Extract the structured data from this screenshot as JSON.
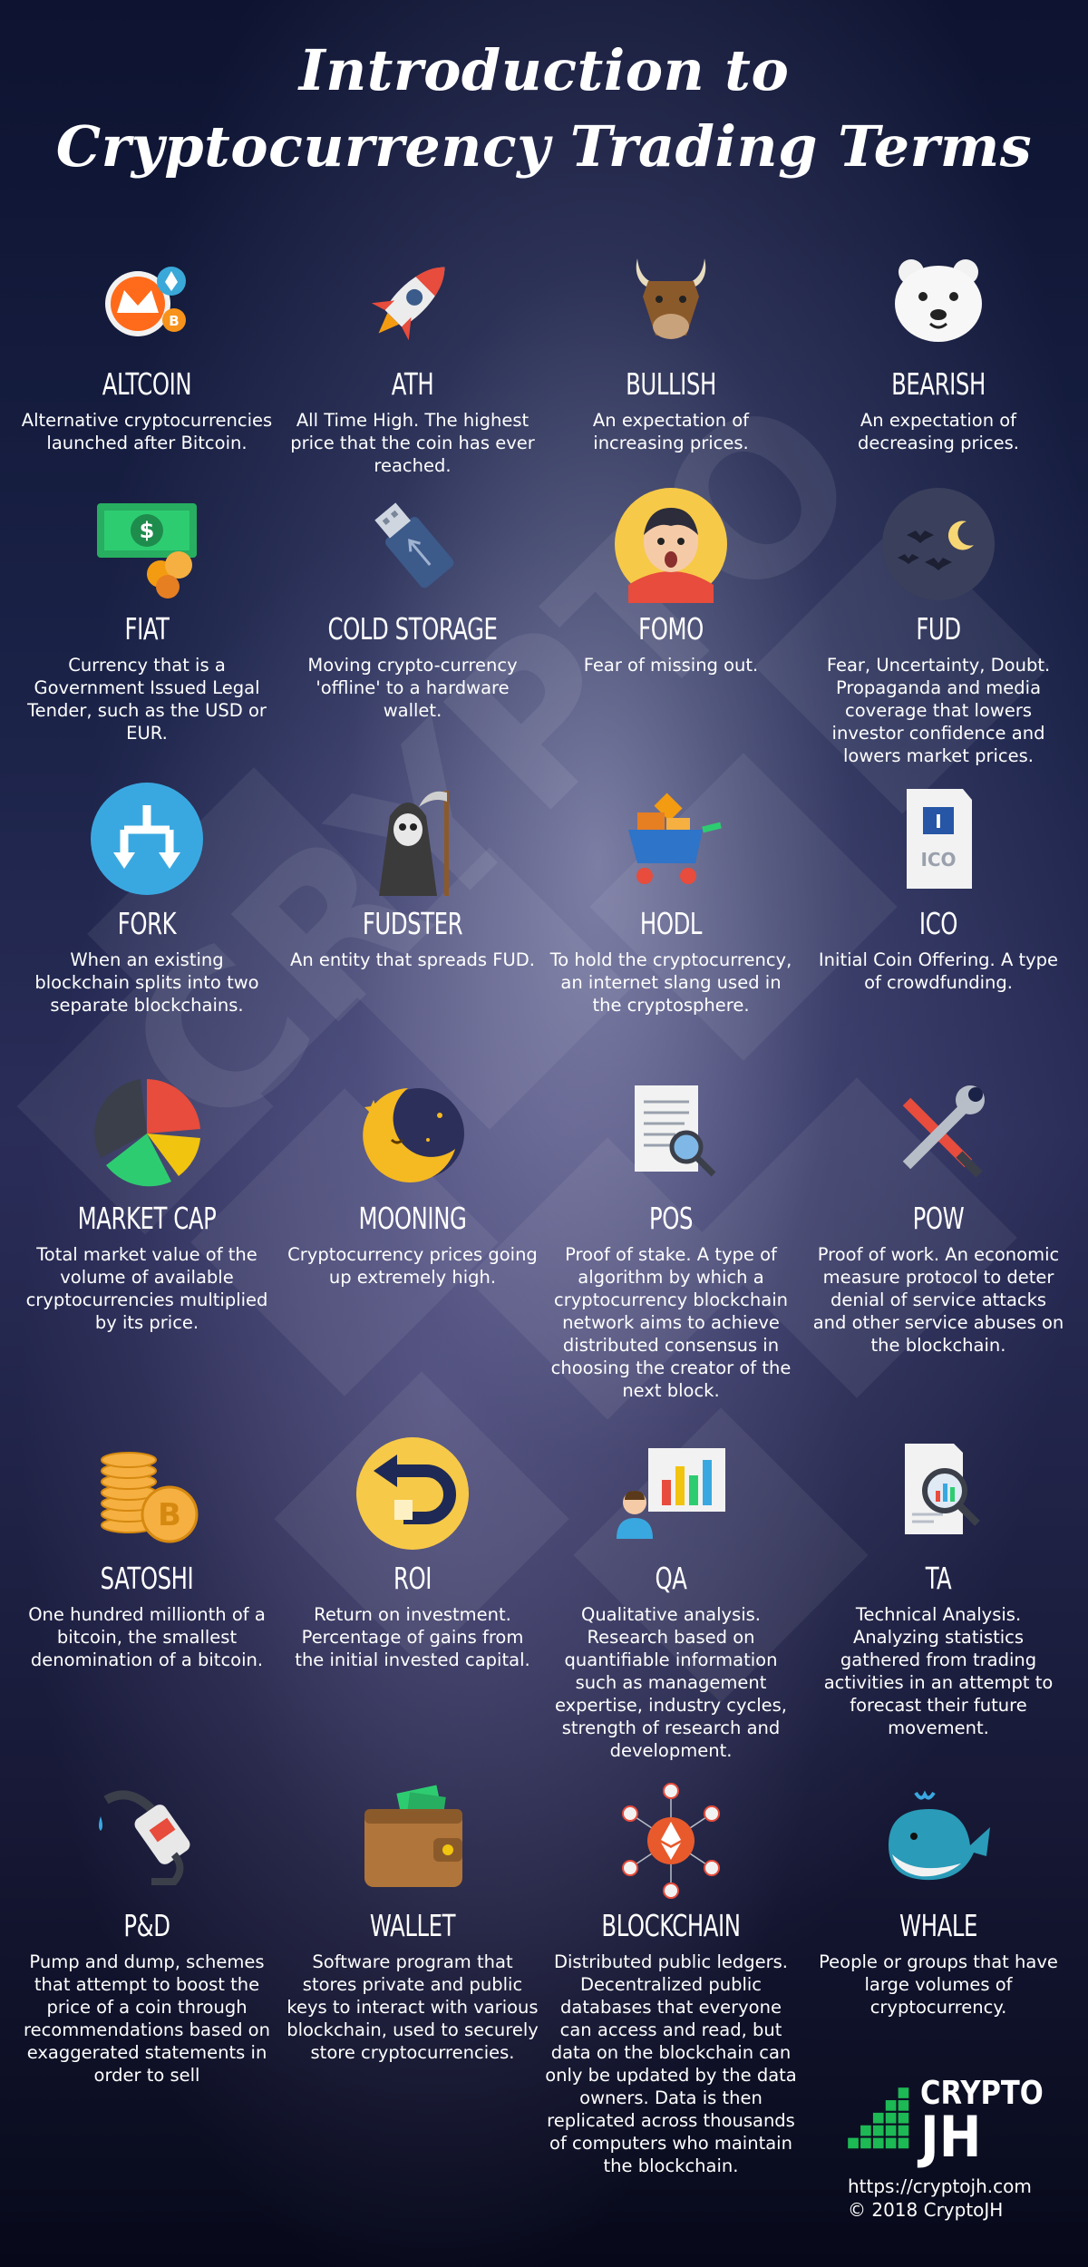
{
  "title_line1": "Introduction to",
  "title_line2": "Cryptocurrency Trading Terms",
  "watermark_text": "CRYPTO",
  "terms": [
    {
      "term": "ALTCOIN",
      "desc": "Alternative cryptocurrencies launched after Bitcoin.",
      "icon": "altcoin-coins-icon"
    },
    {
      "term": "ATH",
      "desc": "All Time High. The highest price that the coin has ever reached.",
      "icon": "rocket-icon"
    },
    {
      "term": "BULLISH",
      "desc": "An expectation of increasing prices.",
      "icon": "bull-icon"
    },
    {
      "term": "BEARISH",
      "desc": "An expectation of decreasing prices.",
      "icon": "bear-icon"
    },
    {
      "term": "FIAT",
      "desc": "Currency that is a Government Issued Legal Tender, such as the USD or EUR.",
      "icon": "cash-coins-icon"
    },
    {
      "term": "COLD STORAGE",
      "desc": "Moving crypto-currency 'offline' to a hardware wallet.",
      "icon": "usb-drive-icon"
    },
    {
      "term": "FOMO",
      "desc": "Fear of missing out.",
      "icon": "scared-face-icon"
    },
    {
      "term": "FUD",
      "desc": "Fear, Uncertainty, Doubt. Propaganda and media coverage that lowers investor confidence and lowers market prices.",
      "icon": "night-moon-bats-icon"
    },
    {
      "term": "FORK",
      "desc": "When an existing blockchain splits into two separate blockchains.",
      "icon": "fork-arrows-icon"
    },
    {
      "term": "FUDSTER",
      "desc": "An entity that spreads FUD.",
      "icon": "grim-reaper-icon"
    },
    {
      "term": "HODL",
      "desc": "To hold the cryptocurrency, an internet slang used in the cryptosphere.",
      "icon": "shopping-cart-icon"
    },
    {
      "term": "ICO",
      "desc": "Initial Coin Offering. A type of crowdfunding.",
      "icon": "ico-document-icon"
    },
    {
      "term": "MARKET CAP",
      "desc": "Total market value of the volume of available cryptocurrencies multiplied by its price.",
      "icon": "pie-chart-icon"
    },
    {
      "term": "MOONING",
      "desc": "Cryptocurrency prices going up extremely high.",
      "icon": "crescent-moon-icon"
    },
    {
      "term": "POS",
      "desc": "Proof of stake. A type of algorithm by which a cryptocurrency blockchain network aims to achieve distributed consensus in choosing the creator of the next block.",
      "icon": "document-magnifier-icon"
    },
    {
      "term": "POW",
      "desc": "Proof of work. An economic measure protocol to deter denial of service attacks and other service abuses on the blockchain.",
      "icon": "wrench-screwdriver-icon"
    },
    {
      "term": "SATOSHI",
      "desc": "One hundred millionth of a bitcoin, the smallest denomination of a bitcoin.",
      "icon": "coin-stack-icon"
    },
    {
      "term": "ROI",
      "desc": "Return on investment. Percentage of gains from the initial invested capital.",
      "icon": "return-arrow-icon"
    },
    {
      "term": "QA",
      "desc": "Qualitative analysis. Research based on quantifiable information such as management expertise, industry cycles, strength of research and development.",
      "icon": "presenter-chart-icon"
    },
    {
      "term": "TA",
      "desc": "Technical Analysis. Analyzing statistics gathered from trading activities in an attempt to forecast their future movement.",
      "icon": "report-magnifier-icon"
    },
    {
      "term": "P&D",
      "desc": "Pump and dump, schemes that attempt to boost the price of a coin through recommendations based on exaggerated statements in order to sell",
      "icon": "fuel-nozzle-icon"
    },
    {
      "term": "WALLET",
      "desc": "Software program that stores private and public keys to interact with various blockchain, used to securely store cryptocurrencies.",
      "icon": "wallet-icon"
    },
    {
      "term": "BLOCKCHAIN",
      "desc": "Distributed public ledgers. Decentralized public databases that everyone can access and read, but data on the blockchain can only be updated by the data owners. Data is then replicated across thousands of computers who maintain the blockchain.",
      "icon": "ethereum-network-icon"
    },
    {
      "term": "WHALE",
      "desc": "People or groups that have large volumes of cryptocurrency.",
      "icon": "whale-icon"
    }
  ],
  "brand": {
    "line1": "CRYPTO",
    "line2": "JH",
    "url": "https://cryptojh.com",
    "copyright": "© 2018 CryptoJH"
  }
}
